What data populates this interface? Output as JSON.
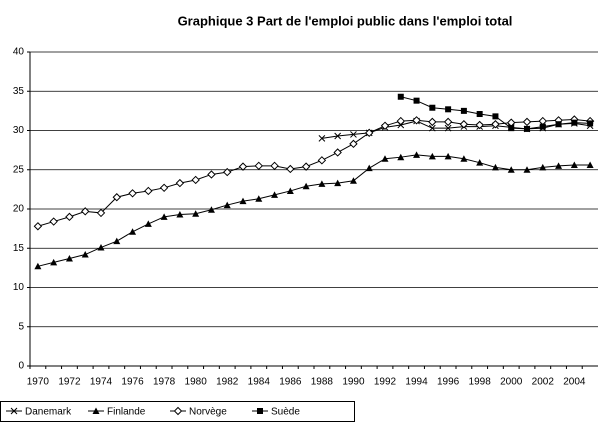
{
  "chart_data": {
    "type": "line",
    "title": "Graphique 3 Part de l'emploi public dans l'emploi total",
    "categories": [
      "1970",
      null,
      "1972",
      null,
      "1974",
      null,
      "1976",
      null,
      "1978",
      null,
      "1980",
      null,
      "1982",
      null,
      "1984",
      null,
      "1986",
      null,
      "1988",
      null,
      "1990",
      null,
      "1992",
      null,
      "1994",
      null,
      "1996",
      null,
      "1998",
      null,
      "2000",
      null,
      "2002",
      null,
      "2004",
      null
    ],
    "ylim": [
      0,
      40
    ],
    "yticks": [
      0,
      5,
      10,
      15,
      20,
      25,
      30,
      35,
      40
    ],
    "grid": true,
    "legend": "bottom-left",
    "series": [
      {
        "name": "Danemark",
        "color": "#000000",
        "marker": "x",
        "values": [
          null,
          null,
          null,
          null,
          null,
          null,
          null,
          null,
          null,
          null,
          null,
          null,
          null,
          null,
          null,
          null,
          null,
          null,
          29.0,
          29.3,
          29.5,
          29.7,
          30.4,
          30.7,
          31.2,
          30.3,
          30.3,
          30.5,
          30.5,
          30.6,
          30.4,
          30.2,
          30.3,
          30.8,
          30.9,
          30.6
        ]
      },
      {
        "name": "Finlande",
        "color": "#000000",
        "marker": "triangle",
        "values": [
          12.7,
          13.2,
          13.7,
          14.2,
          15.1,
          15.9,
          17.1,
          18.1,
          19.0,
          19.3,
          19.4,
          19.9,
          20.5,
          21.0,
          21.3,
          21.8,
          22.3,
          22.9,
          23.2,
          23.3,
          23.6,
          25.2,
          26.4,
          26.6,
          26.9,
          26.7,
          26.7,
          26.4,
          25.9,
          25.3,
          25.0,
          25.0,
          25.3,
          25.5,
          25.6,
          25.6
        ]
      },
      {
        "name": "Norvège",
        "color": "#000000",
        "marker": "diamond",
        "values": [
          17.8,
          18.4,
          19.0,
          19.7,
          19.5,
          21.5,
          22.0,
          22.3,
          22.7,
          23.3,
          23.7,
          24.4,
          24.7,
          25.4,
          25.5,
          25.5,
          25.1,
          25.4,
          26.2,
          27.2,
          28.3,
          29.7,
          30.6,
          31.2,
          31.3,
          31.1,
          31.1,
          30.8,
          30.7,
          30.8,
          31.0,
          31.1,
          31.2,
          31.3,
          31.4,
          31.2
        ]
      },
      {
        "name": "Suède",
        "color": "#000000",
        "marker": "square",
        "values": [
          null,
          null,
          null,
          null,
          null,
          null,
          null,
          null,
          null,
          null,
          null,
          null,
          null,
          null,
          null,
          null,
          null,
          null,
          null,
          null,
          null,
          null,
          null,
          34.3,
          33.8,
          32.9,
          32.7,
          32.5,
          32.1,
          31.8,
          30.3,
          30.2,
          30.5,
          30.8,
          31.0,
          30.9
        ]
      }
    ]
  }
}
